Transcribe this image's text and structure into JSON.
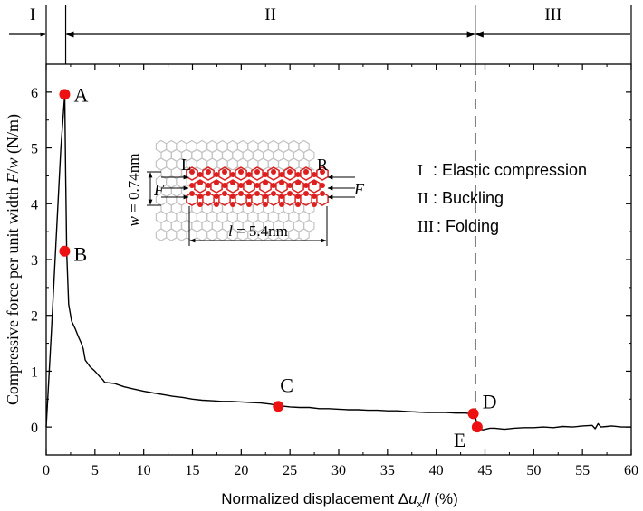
{
  "chart_data": {
    "type": "line",
    "xlabel_pre": "Normalized displacement Δ",
    "xlabel_var": "u",
    "xlabel_sub": "x",
    "xlabel_slash": "/",
    "xlabel_l": "l",
    "xlabel_post": " (%)",
    "ylabel_pre": "Compressive force per unit width ",
    "ylabel_F": "F",
    "ylabel_slash": "/",
    "ylabel_w": "w",
    "ylabel_post": " (N/m)",
    "xlim": [
      0,
      60
    ],
    "ylim": [
      -0.5,
      6.5
    ],
    "xticks": [
      0,
      5,
      10,
      15,
      20,
      25,
      30,
      35,
      40,
      45,
      50,
      55,
      60
    ],
    "yticks": [
      0,
      1,
      2,
      3,
      4,
      5,
      6
    ],
    "series": [
      {
        "x": [
          0,
          0.5,
          1.0,
          1.5,
          1.9,
          2.0,
          2.05,
          2.1,
          2.3,
          2.6,
          3.0,
          3.3,
          3.6,
          3.8,
          4.0,
          4.5,
          5.0,
          5.5,
          5.8,
          6.0,
          7,
          8,
          9,
          10,
          11,
          12,
          13,
          14,
          15,
          16,
          17,
          18,
          19,
          20,
          21,
          22,
          23,
          24,
          25,
          26,
          27,
          28,
          29,
          30,
          31,
          32,
          33,
          34,
          35,
          36,
          37,
          38,
          39,
          40,
          41,
          42,
          43,
          43.5,
          44.0,
          44.2,
          44.4,
          44.8,
          45.5,
          46,
          47,
          48,
          49,
          50,
          51,
          52,
          53,
          54,
          55,
          56,
          56.3,
          56.6,
          56.9,
          57.5,
          58,
          59,
          60
        ],
        "y": [
          0,
          1.6,
          3.3,
          5.0,
          5.96,
          4.5,
          3.8,
          3.15,
          2.2,
          1.9,
          1.75,
          1.62,
          1.5,
          1.4,
          1.2,
          1.08,
          1.0,
          0.9,
          0.85,
          0.8,
          0.78,
          0.72,
          0.68,
          0.64,
          0.61,
          0.58,
          0.55,
          0.53,
          0.5,
          0.48,
          0.47,
          0.46,
          0.46,
          0.45,
          0.44,
          0.43,
          0.41,
          0.38,
          0.36,
          0.35,
          0.35,
          0.33,
          0.33,
          0.32,
          0.31,
          0.31,
          0.3,
          0.3,
          0.29,
          0.29,
          0.28,
          0.27,
          0.26,
          0.26,
          0.26,
          0.25,
          0.25,
          0.24,
          0.22,
          0.0,
          -0.03,
          -0.05,
          -0.02,
          -0.02,
          -0.04,
          -0.02,
          -0.01,
          -0.01,
          0.0,
          -0.01,
          0.01,
          0.0,
          0.02,
          0.03,
          -0.03,
          0.06,
          0.0,
          0.01,
          0.02,
          0.0,
          0.0
        ]
      }
    ],
    "points": [
      {
        "label": "A",
        "x": 1.9,
        "y": 5.96,
        "dx": 10,
        "dy": 0
      },
      {
        "label": "B",
        "x": 1.9,
        "y": 3.15,
        "dx": 10,
        "dy": 3
      },
      {
        "label": "C",
        "x": 23.8,
        "y": 0.37,
        "dx": 2,
        "dy": -24
      },
      {
        "label": "D",
        "x": 43.8,
        "y": 0.24,
        "dx": 10,
        "dy": -14
      },
      {
        "label": "E",
        "x": 44.2,
        "y": 0.0,
        "dx": -26,
        "dy": 14
      }
    ],
    "point_color": "#ee1111",
    "line_color": "#000000",
    "regions": [
      {
        "label": "I",
        "start": 0,
        "end": 2
      },
      {
        "label": "II",
        "start": 2,
        "end": 44
      },
      {
        "label": "III",
        "start": 44,
        "end": 60
      }
    ],
    "divider_x": 44,
    "legend": [
      {
        "num": "I",
        "text": "Elastic compression"
      },
      {
        "num": "II",
        "text": "Buckling"
      },
      {
        "num": "III",
        "text": "Folding"
      }
    ],
    "inset": {
      "label_L": "L",
      "label_R": "R",
      "force": "F",
      "w_var": "w",
      "w_value": " = 0.74nm",
      "l_var": "l",
      "l_value": " = 5.4nm",
      "atom_color": "#dd1f1f",
      "lattice_color": "#c4c4c4"
    }
  }
}
